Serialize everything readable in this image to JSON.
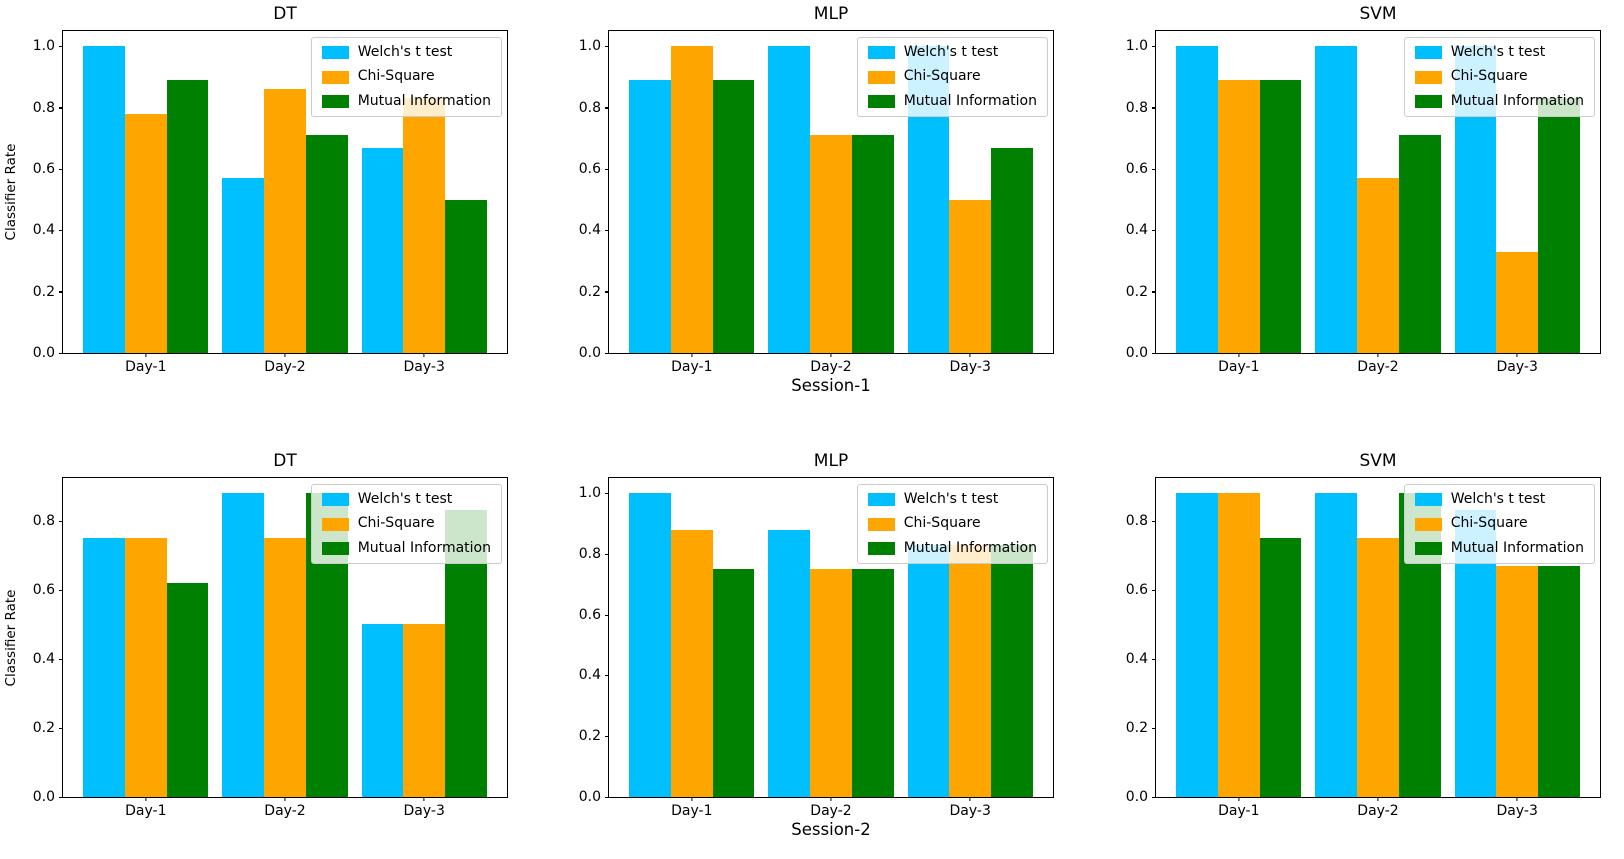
{
  "figure": {
    "background": "#ffffff",
    "series_colors": {
      "welchs_t_test": "#00BFFF",
      "chi_square": "#FFA500",
      "mutual_information": "#008000"
    }
  },
  "chart_data": [
    {
      "type": "bar",
      "title": "DT",
      "categories": [
        "Day-1",
        "Day-2",
        "Day-3"
      ],
      "series": [
        {
          "name": "Welch's t test",
          "color": "#00BFFF",
          "values": [
            1.0,
            0.57,
            0.67
          ]
        },
        {
          "name": "Chi-Square",
          "color": "#FFA500",
          "values": [
            0.78,
            0.86,
            0.83
          ]
        },
        {
          "name": "Mutual Information",
          "color": "#008000",
          "values": [
            0.89,
            0.71,
            0.5
          ]
        }
      ],
      "ylabel": "Classifier Rate",
      "xlabel": "",
      "ylim": [
        0,
        1.05
      ],
      "yticks": [
        "0.0",
        "0.2",
        "0.4",
        "0.6",
        "0.8",
        "1.0"
      ],
      "grid": false,
      "legend_position": "upper right"
    },
    {
      "type": "bar",
      "title": "MLP",
      "categories": [
        "Day-1",
        "Day-2",
        "Day-3"
      ],
      "series": [
        {
          "name": "Welch's t test",
          "color": "#00BFFF",
          "values": [
            0.89,
            1.0,
            1.0
          ]
        },
        {
          "name": "Chi-Square",
          "color": "#FFA500",
          "values": [
            1.0,
            0.71,
            0.5
          ]
        },
        {
          "name": "Mutual Information",
          "color": "#008000",
          "values": [
            0.89,
            0.71,
            0.67
          ]
        }
      ],
      "ylabel": "",
      "xlabel": "Session-1",
      "ylim": [
        0,
        1.05
      ],
      "yticks": [
        "0.0",
        "0.2",
        "0.4",
        "0.6",
        "0.8",
        "1.0"
      ],
      "grid": false,
      "legend_position": "upper right"
    },
    {
      "type": "bar",
      "title": "SVM",
      "categories": [
        "Day-1",
        "Day-2",
        "Day-3"
      ],
      "series": [
        {
          "name": "Welch's t test",
          "color": "#00BFFF",
          "values": [
            1.0,
            1.0,
            1.0
          ]
        },
        {
          "name": "Chi-Square",
          "color": "#FFA500",
          "values": [
            0.89,
            0.57,
            0.33
          ]
        },
        {
          "name": "Mutual Information",
          "color": "#008000",
          "values": [
            0.89,
            0.71,
            0.83
          ]
        }
      ],
      "ylabel": "",
      "xlabel": "",
      "ylim": [
        0,
        1.05
      ],
      "yticks": [
        "0.0",
        "0.2",
        "0.4",
        "0.6",
        "0.8",
        "1.0"
      ],
      "grid": false,
      "legend_position": "upper right"
    },
    {
      "type": "bar",
      "title": "DT",
      "categories": [
        "Day-1",
        "Day-2",
        "Day-3"
      ],
      "series": [
        {
          "name": "Welch's t test",
          "color": "#00BFFF",
          "values": [
            0.75,
            0.88,
            0.5
          ]
        },
        {
          "name": "Chi-Square",
          "color": "#FFA500",
          "values": [
            0.75,
            0.75,
            0.5
          ]
        },
        {
          "name": "Mutual Information",
          "color": "#008000",
          "values": [
            0.62,
            0.88,
            0.83
          ]
        }
      ],
      "ylabel": "Classifier Rate",
      "xlabel": "",
      "ylim": [
        0,
        0.924
      ],
      "yticks": [
        "0.0",
        "0.2",
        "0.4",
        "0.6",
        "0.8"
      ],
      "grid": false,
      "legend_position": "upper right"
    },
    {
      "type": "bar",
      "title": "MLP",
      "categories": [
        "Day-1",
        "Day-2",
        "Day-3"
      ],
      "series": [
        {
          "name": "Welch's t test",
          "color": "#00BFFF",
          "values": [
            1.0,
            0.88,
            0.83
          ]
        },
        {
          "name": "Chi-Square",
          "color": "#FFA500",
          "values": [
            0.88,
            0.75,
            0.83
          ]
        },
        {
          "name": "Mutual Information",
          "color": "#008000",
          "values": [
            0.75,
            0.75,
            0.83
          ]
        }
      ],
      "ylabel": "",
      "xlabel": "Session-2",
      "ylim": [
        0,
        1.05
      ],
      "yticks": [
        "0.0",
        "0.2",
        "0.4",
        "0.6",
        "0.8",
        "1.0"
      ],
      "grid": false,
      "legend_position": "upper right"
    },
    {
      "type": "bar",
      "title": "SVM",
      "categories": [
        "Day-1",
        "Day-2",
        "Day-3"
      ],
      "series": [
        {
          "name": "Welch's t test",
          "color": "#00BFFF",
          "values": [
            0.88,
            0.88,
            0.83
          ]
        },
        {
          "name": "Chi-Square",
          "color": "#FFA500",
          "values": [
            0.88,
            0.75,
            0.67
          ]
        },
        {
          "name": "Mutual Information",
          "color": "#008000",
          "values": [
            0.75,
            0.88,
            0.67
          ]
        }
      ],
      "ylabel": "",
      "xlabel": "",
      "ylim": [
        0,
        0.924
      ],
      "yticks": [
        "0.0",
        "0.2",
        "0.4",
        "0.6",
        "0.8"
      ],
      "grid": false,
      "legend_position": "upper right"
    }
  ]
}
